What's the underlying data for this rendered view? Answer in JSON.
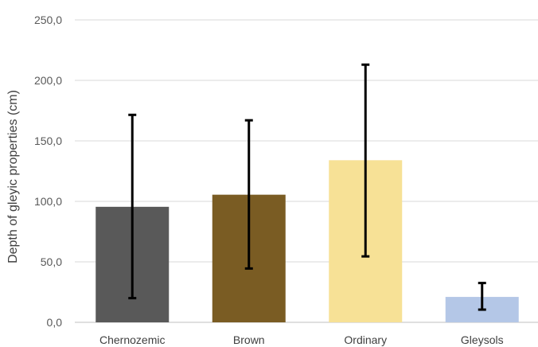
{
  "chart_data": {
    "type": "bar",
    "categories": [
      "Chernozemic",
      "Brown",
      "Ordinary",
      "Gleysols"
    ],
    "values": [
      95.5,
      105.5,
      134.0,
      21.0
    ],
    "error_bars": [
      {
        "low": 20.0,
        "high": 171.5
      },
      {
        "low": 44.5,
        "high": 167.0
      },
      {
        "low": 54.5,
        "high": 213.0
      },
      {
        "low": 10.5,
        "high": 32.5
      }
    ],
    "colors": [
      "#595959",
      "#7a5c23",
      "#f7e196",
      "#b4c7e7"
    ],
    "ylabel": "Depth of gleyic properties (cm)",
    "xlabel": "",
    "ylim": [
      0,
      250
    ],
    "yticks": [
      "0,0",
      "50,0",
      "100,0",
      "150,0",
      "200,0",
      "250,0"
    ],
    "grid": true,
    "legend": "none"
  }
}
